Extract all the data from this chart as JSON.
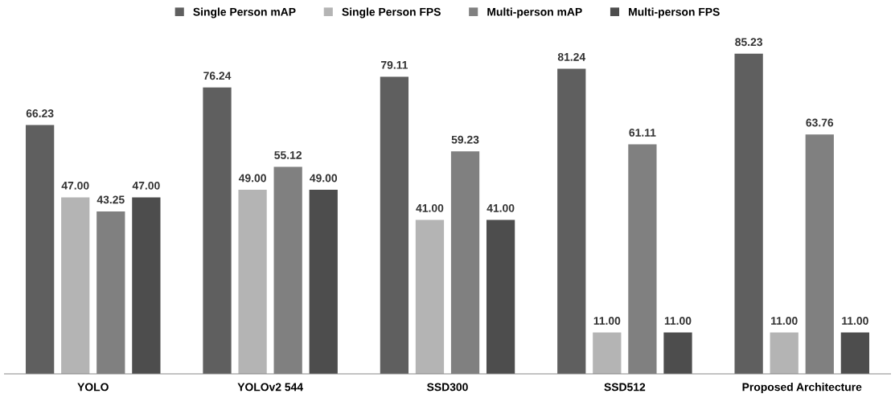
{
  "chart_data": {
    "type": "bar",
    "categories": [
      "YOLO",
      "YOLOv2 544",
      "SSD300",
      "SSD512",
      "Proposed Architecture"
    ],
    "series": [
      {
        "name": "Single Person mAP",
        "color": "#5f5f5f",
        "values": [
          66.23,
          76.24,
          79.11,
          81.24,
          85.23
        ],
        "value_labels": [
          "66.23",
          "76.24",
          "79.11",
          "81.24",
          "85.23"
        ]
      },
      {
        "name": "Single Person FPS",
        "color": "#b4b4b4",
        "values": [
          47,
          49,
          41,
          11,
          11
        ],
        "value_labels": [
          "47.00",
          "49.00",
          "41.00",
          "11.00",
          "11.00"
        ]
      },
      {
        "name": "Multi-person mAP",
        "color": "#808080",
        "values": [
          43.25,
          55.12,
          59.23,
          61.11,
          63.76
        ],
        "value_labels": [
          "43.25",
          "55.12",
          "59.23",
          "61.11",
          "63.76"
        ]
      },
      {
        "name": "Multi-person FPS",
        "color": "#4d4d4d",
        "values": [
          47,
          49,
          41,
          11,
          11
        ],
        "value_labels": [
          "47.00",
          "49.00",
          "41.00",
          "11.00",
          "11.00"
        ]
      }
    ],
    "legend": "top",
    "grid": false
  }
}
